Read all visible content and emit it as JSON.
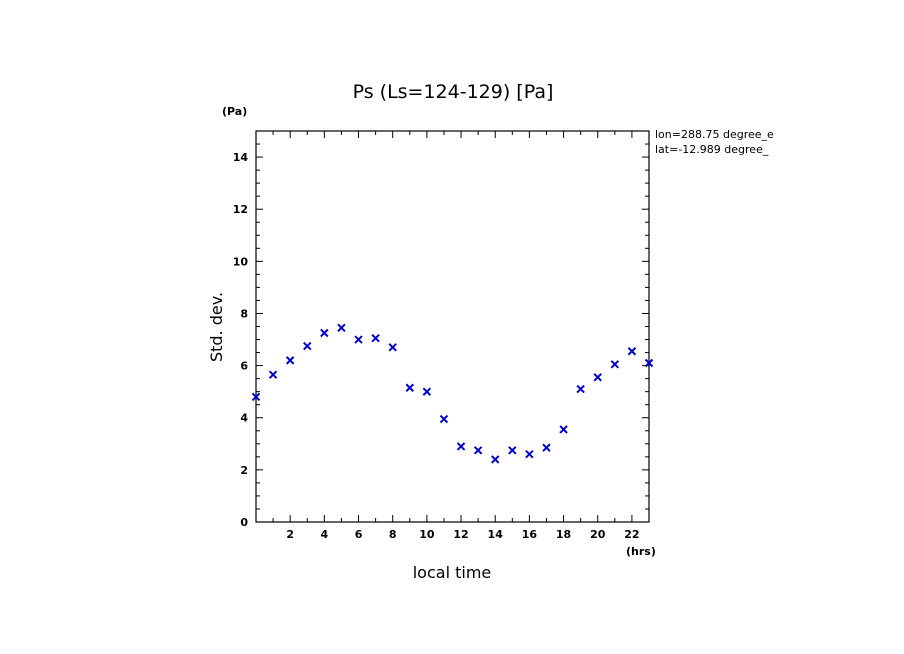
{
  "chart_data": {
    "type": "scatter",
    "title": "Ps (Ls=124-129) [Pa]",
    "xlabel": "local time",
    "ylabel": "Std. dev.",
    "x_unit": "(hrs)",
    "y_unit": "(Pa)",
    "xlim": [
      0,
      23
    ],
    "ylim": [
      0,
      15
    ],
    "x_ticks": [
      2,
      4,
      6,
      8,
      10,
      12,
      14,
      16,
      18,
      20,
      22
    ],
    "y_ticks": [
      0,
      2,
      4,
      6,
      8,
      10,
      12,
      14
    ],
    "annotations": [
      "lon=288.75 degree_e",
      "lat=-12.989 degree_"
    ],
    "marker": "x",
    "marker_color": "#0000cc",
    "series": [
      {
        "x": [
          0,
          1,
          2,
          3,
          4,
          5,
          6,
          7,
          8,
          9,
          10,
          11,
          12,
          13,
          14,
          15,
          16,
          17,
          18,
          19,
          20,
          21,
          22,
          23
        ],
        "values": [
          4.8,
          5.65,
          6.2,
          6.75,
          7.25,
          7.45,
          7.0,
          7.05,
          6.7,
          5.15,
          5.0,
          3.95,
          2.9,
          2.75,
          2.4,
          2.75,
          2.6,
          2.85,
          3.55,
          5.1,
          5.55,
          6.05,
          6.55,
          6.1
        ]
      }
    ]
  }
}
